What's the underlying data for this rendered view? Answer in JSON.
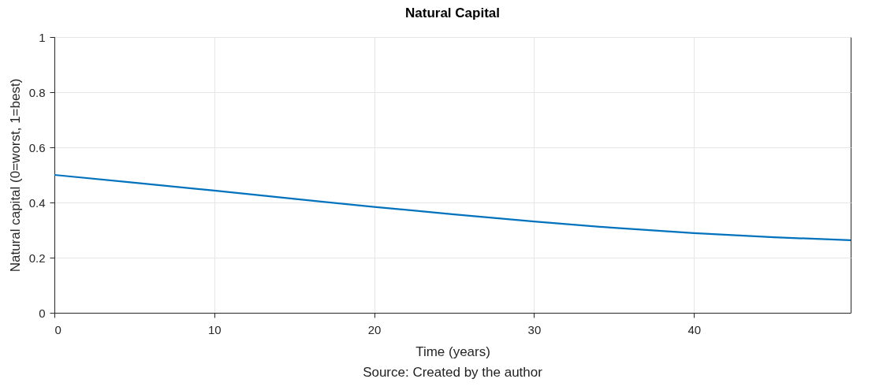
{
  "chart_data": {
    "type": "line",
    "title": "Natural Capital",
    "xlabel": "Time (years)",
    "ylabel": "Natural capital (0=worst, 1=best)",
    "x": [
      0,
      5,
      10,
      15,
      20,
      25,
      30,
      35,
      40,
      45,
      49.8
    ],
    "series": [
      {
        "color": "#0072bd",
        "values": [
          0.5,
          0.472,
          0.443,
          0.413,
          0.384,
          0.357,
          0.331,
          0.308,
          0.289,
          0.274,
          0.263
        ]
      }
    ],
    "xlim": [
      0,
      49.8
    ],
    "xticks": [
      0,
      10,
      20,
      30,
      40
    ],
    "ylim": [
      0,
      1
    ],
    "yticks": [
      0,
      0.2,
      0.4,
      0.6,
      0.8,
      1
    ],
    "grid": true,
    "marker": "none",
    "line_style": "solid",
    "annotations": [
      "Source: Created by the author"
    ]
  }
}
